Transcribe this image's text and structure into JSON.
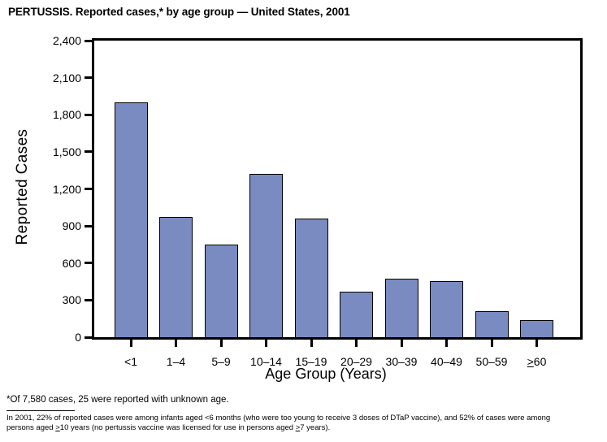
{
  "chart_data": {
    "type": "bar",
    "title": "PERTUSSIS. Reported cases,* by age group — United States, 2001",
    "xlabel": "Age Group (Years)",
    "ylabel": "Reported Cases",
    "categories": [
      "<1",
      "1–4",
      "5–9",
      "10–14",
      "15–19",
      "20–29",
      "30–39",
      "40–49",
      "50–59",
      "≥60"
    ],
    "values": [
      1900,
      970,
      750,
      1320,
      960,
      370,
      475,
      455,
      210,
      140
    ],
    "ylim": [
      0,
      2400
    ],
    "ytick_interval": 300,
    "ytick_labels": [
      "0",
      "300",
      "600",
      "900",
      "1,200",
      "1,500",
      "1,800",
      "2,100",
      "2,400"
    ],
    "bar_color": "#7a8bc1",
    "bar_border_color": "#000000",
    "axis_color": "#000000",
    "grid": false,
    "legend_position": "none"
  },
  "footnotes": {
    "asterisk_note": "*Of 7,580 cases, 25 were reported with unknown age.",
    "detail_lines": [
      "In 2001, 22% of reported cases were among infants aged <6 months (who were too young to receive 3 doses of DTaP vaccine), and 52% of cases were among",
      "persons aged ≥10 years (no pertussis vaccine was licensed for use in persons aged ≥7 years)."
    ]
  }
}
